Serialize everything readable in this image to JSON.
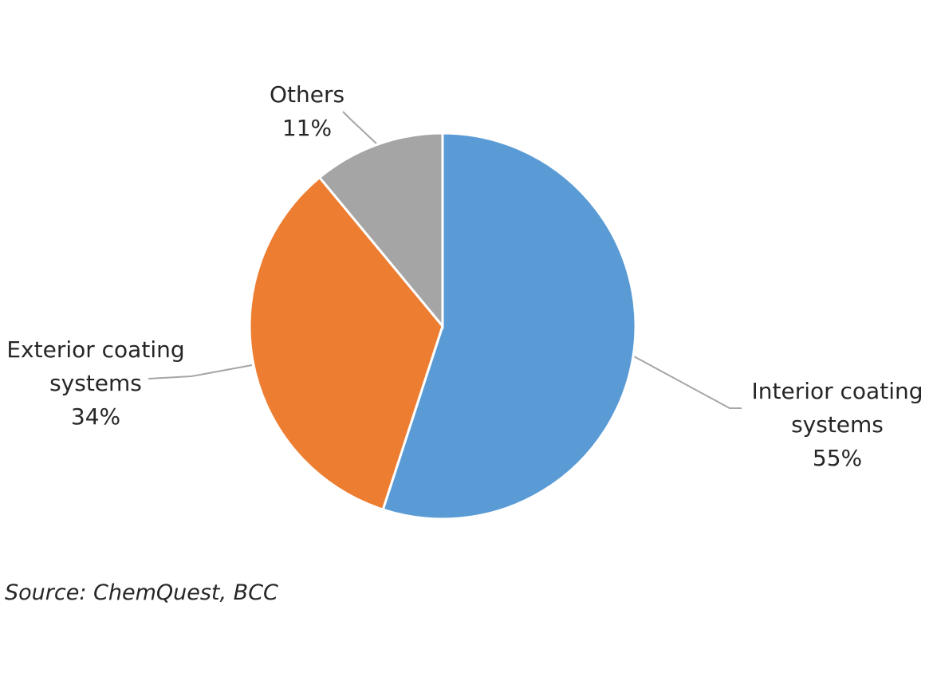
{
  "chart_data": {
    "type": "pie",
    "categories": [
      "Interior coating systems",
      "Exterior coating systems",
      "Others"
    ],
    "values": [
      55,
      34,
      11
    ],
    "value_labels": [
      "55%",
      "34%",
      "11%"
    ],
    "colors": [
      "#5b9bd5",
      "#ed7d31",
      "#a5a5a5"
    ],
    "source": "Source: ChemQuest, BCC"
  }
}
